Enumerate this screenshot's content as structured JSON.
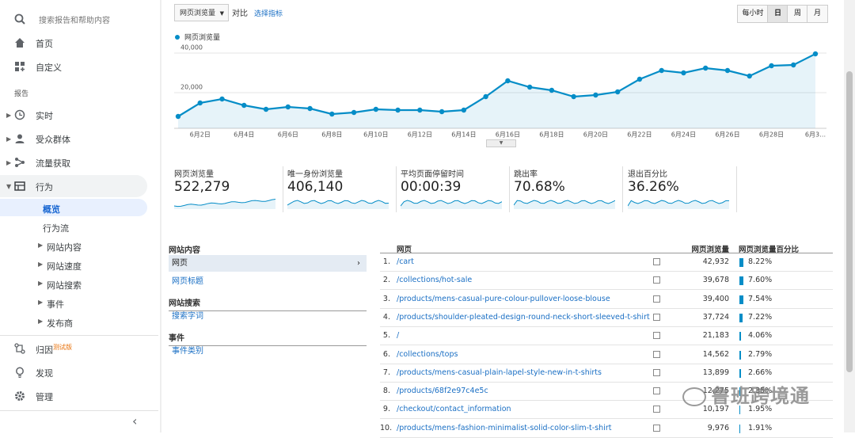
{
  "sidebar": {
    "search_placeholder": "搜索报告和帮助内容",
    "items": [
      "首页",
      "自定义"
    ],
    "section": "报告",
    "reports": [
      "实时",
      "受众群体",
      "流量获取",
      "行为"
    ],
    "behavior_sub": [
      "概览",
      "行为流",
      "网站内容",
      "网站速度",
      "网站搜索",
      "事件",
      "发布商"
    ],
    "attribution": "归因",
    "attribution_badge": "测试版",
    "discover": "发现",
    "admin": "管理"
  },
  "toolbar": {
    "metric": "网页浏览量",
    "compare": "对比",
    "select_metric": "选择指标",
    "granularity": [
      "每小时",
      "日",
      "周",
      "月"
    ],
    "selected": 1
  },
  "chart_data": {
    "type": "line",
    "series": [
      {
        "name": "网页浏览量",
        "color": "#058dc7",
        "values": [
          8000,
          14800,
          16800,
          13600,
          11600,
          12800,
          12000,
          9200,
          10000,
          11600,
          11200,
          11200,
          10400,
          11200,
          18000,
          26000,
          22800,
          21200,
          18000,
          18800,
          20400,
          26800,
          31200,
          30000,
          32400,
          31200,
          28400,
          33600,
          34000,
          39600
        ]
      }
    ],
    "categories": [
      null,
      "6月2日",
      null,
      "6月4日",
      null,
      "6月6日",
      null,
      "6月8日",
      null,
      "6月10日",
      null,
      "6月12日",
      null,
      "6月14日",
      null,
      "6月16日",
      null,
      "6月18日",
      null,
      "6月20日",
      null,
      "6月22日",
      null,
      "6月24日",
      null,
      "6月26日",
      null,
      "6月28日",
      null,
      "6月3…"
    ],
    "ylim": [
      2000,
      44000
    ],
    "yticks": [
      {
        "value": 20000,
        "label": "20,000"
      },
      {
        "value": 40000,
        "label": "40,000"
      }
    ],
    "grid": true
  },
  "scorecards": [
    {
      "label": "网页浏览量",
      "value": "522,279"
    },
    {
      "label": "唯一身份浏览量",
      "value": "406,140"
    },
    {
      "label": "平均页面停留时间",
      "value": "00:00:39"
    },
    {
      "label": "跳出率",
      "value": "70.68%"
    },
    {
      "label": "退出百分比",
      "value": "36.26%"
    }
  ],
  "dimension_panel": {
    "groups": [
      {
        "title": "网站内容",
        "items": [
          "网页",
          "网页标题"
        ]
      },
      {
        "title": "网站搜索",
        "items": [
          "搜索字词"
        ]
      },
      {
        "title": "事件",
        "items": [
          "事件类别"
        ]
      }
    ]
  },
  "table": {
    "columns": [
      "网页",
      "网页浏览量",
      "网页浏览量百分比"
    ],
    "rows": [
      {
        "rank": "1.",
        "page": "/cart",
        "views": "42,932",
        "pct": 8.22,
        "pct_label": "8.22%"
      },
      {
        "rank": "2.",
        "page": "/collections/hot-sale",
        "views": "39,678",
        "pct": 7.6,
        "pct_label": "7.60%"
      },
      {
        "rank": "3.",
        "page": "/products/mens-casual-pure-colour-pullover-loose-blouse",
        "views": "39,400",
        "pct": 7.54,
        "pct_label": "7.54%"
      },
      {
        "rank": "4.",
        "page": "/products/shoulder-pleated-design-round-neck-short-sleeved-t-shirt",
        "views": "37,724",
        "pct": 7.22,
        "pct_label": "7.22%"
      },
      {
        "rank": "5.",
        "page": "/",
        "views": "21,183",
        "pct": 4.06,
        "pct_label": "4.06%"
      },
      {
        "rank": "6.",
        "page": "/collections/tops",
        "views": "14,562",
        "pct": 2.79,
        "pct_label": "2.79%"
      },
      {
        "rank": "7.",
        "page": "/products/mens-casual-plain-lapel-style-new-in-t-shirts",
        "views": "13,899",
        "pct": 2.66,
        "pct_label": "2.66%"
      },
      {
        "rank": "8.",
        "page": "/products/68f2e97c4e5c",
        "views": "12,275",
        "pct": 2.35,
        "pct_label": "2.35%"
      },
      {
        "rank": "9.",
        "page": "/checkout/contact_information",
        "views": "10,197",
        "pct": 1.95,
        "pct_label": "1.95%"
      },
      {
        "rank": "10.",
        "page": "/products/mens-fashion-minimalist-solid-color-slim-t-shirt",
        "views": "9,976",
        "pct": 1.91,
        "pct_label": "1.91%"
      }
    ]
  },
  "watermark": "鲁班跨境通"
}
